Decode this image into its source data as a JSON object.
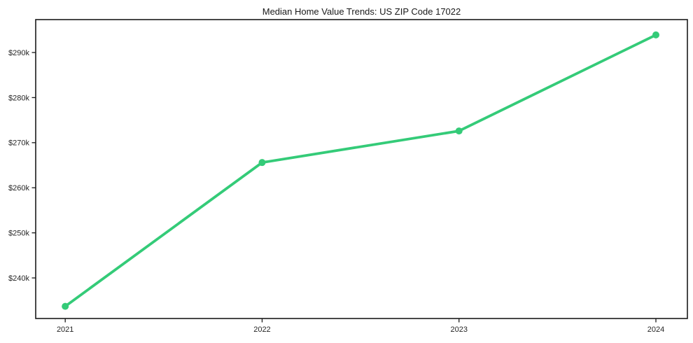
{
  "chart_data": {
    "type": "line",
    "title": "Median Home Value Trends: US ZIP Code 17022",
    "xlabel": "",
    "ylabel": "",
    "categories": [
      "2021",
      "2022",
      "2023",
      "2024"
    ],
    "x": [
      2021,
      2022,
      2023,
      2024
    ],
    "values": [
      233.7,
      265.6,
      272.6,
      293.9
    ],
    "values_unit": "USD thousands",
    "y_ticks": [
      {
        "value": 240,
        "label": "$240k"
      },
      {
        "value": 250,
        "label": "$250k"
      },
      {
        "value": 260,
        "label": "$260k"
      },
      {
        "value": 270,
        "label": "$270k"
      },
      {
        "value": 280,
        "label": "$280k"
      },
      {
        "value": 290,
        "label": "$290k"
      }
    ],
    "xlim": [
      2020.85,
      2024.16
    ],
    "ylim": [
      231.0,
      297.3
    ],
    "grid": false,
    "legend": "none",
    "line_color": "#34cb78",
    "marker": "circle",
    "axis_color": "#1a1a1a",
    "text_color": "#262626"
  }
}
